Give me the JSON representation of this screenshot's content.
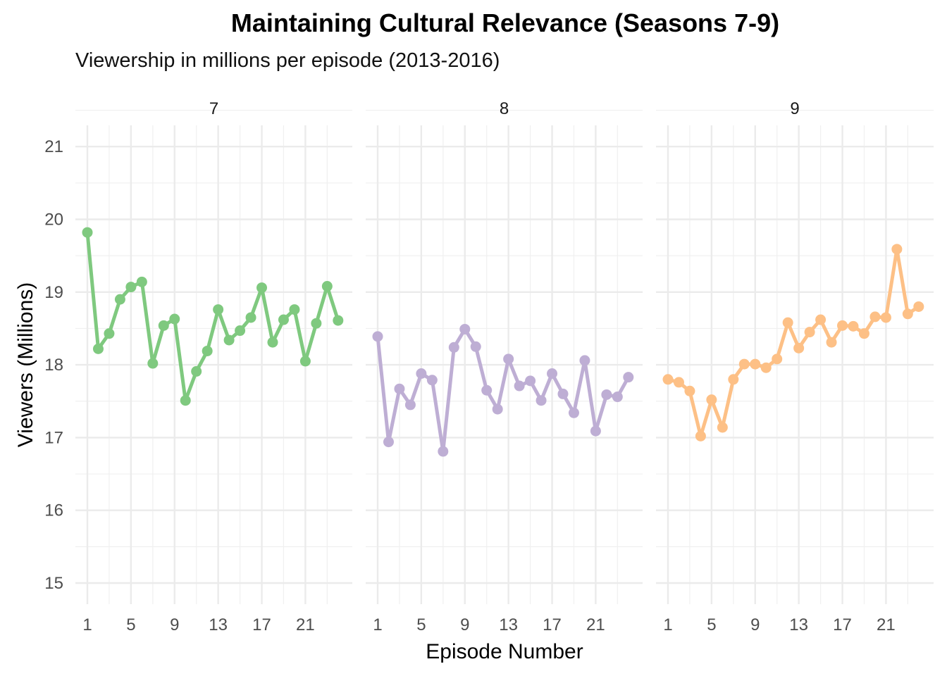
{
  "chart_data": {
    "type": "line",
    "title": "Maintaining Cultural Relevance (Seasons 7-9)",
    "subtitle": "Viewership in millions per episode (2013-2016)",
    "xlabel": "Episode Number",
    "ylabel": "Viewers (Millions)",
    "ylim": [
      15,
      21
    ],
    "yticks": [
      15,
      16,
      17,
      18,
      19,
      20,
      21
    ],
    "xticks": [
      1,
      5,
      9,
      13,
      17,
      21
    ],
    "grid": true,
    "facets": [
      {
        "label": "7",
        "color": "#7fc97f",
        "x": [
          1,
          2,
          3,
          4,
          5,
          6,
          7,
          8,
          9,
          10,
          11,
          12,
          13,
          14,
          15,
          16,
          17,
          18,
          19,
          20,
          21,
          22,
          23,
          24
        ],
        "values": [
          19.82,
          18.22,
          18.43,
          18.9,
          19.07,
          19.14,
          18.02,
          18.54,
          18.63,
          17.51,
          17.91,
          18.19,
          18.76,
          18.34,
          18.47,
          18.65,
          19.06,
          18.31,
          18.62,
          18.76,
          18.05,
          18.57,
          19.08,
          18.61
        ]
      },
      {
        "label": "8",
        "color": "#beaed4",
        "x": [
          1,
          2,
          3,
          4,
          5,
          6,
          7,
          8,
          9,
          10,
          11,
          12,
          13,
          14,
          15,
          16,
          17,
          18,
          19,
          20,
          21,
          22,
          23,
          24
        ],
        "values": [
          18.39,
          16.94,
          17.67,
          17.45,
          17.88,
          17.79,
          16.81,
          18.24,
          18.49,
          18.25,
          17.65,
          17.39,
          18.08,
          17.71,
          17.78,
          17.51,
          17.88,
          17.6,
          17.34,
          18.06,
          17.09,
          17.59,
          17.56,
          17.83
        ]
      },
      {
        "label": "9",
        "color": "#fdc086",
        "x": [
          1,
          2,
          3,
          4,
          5,
          6,
          7,
          8,
          9,
          10,
          11,
          12,
          13,
          14,
          15,
          16,
          17,
          18,
          19,
          20,
          21,
          22,
          23,
          24
        ],
        "values": [
          17.8,
          17.76,
          17.64,
          17.02,
          17.52,
          17.14,
          17.8,
          18.01,
          18.01,
          17.96,
          18.08,
          18.58,
          18.23,
          18.45,
          18.62,
          18.31,
          18.54,
          18.53,
          18.43,
          18.66,
          18.65,
          19.59,
          18.7,
          18.8
        ]
      }
    ]
  }
}
